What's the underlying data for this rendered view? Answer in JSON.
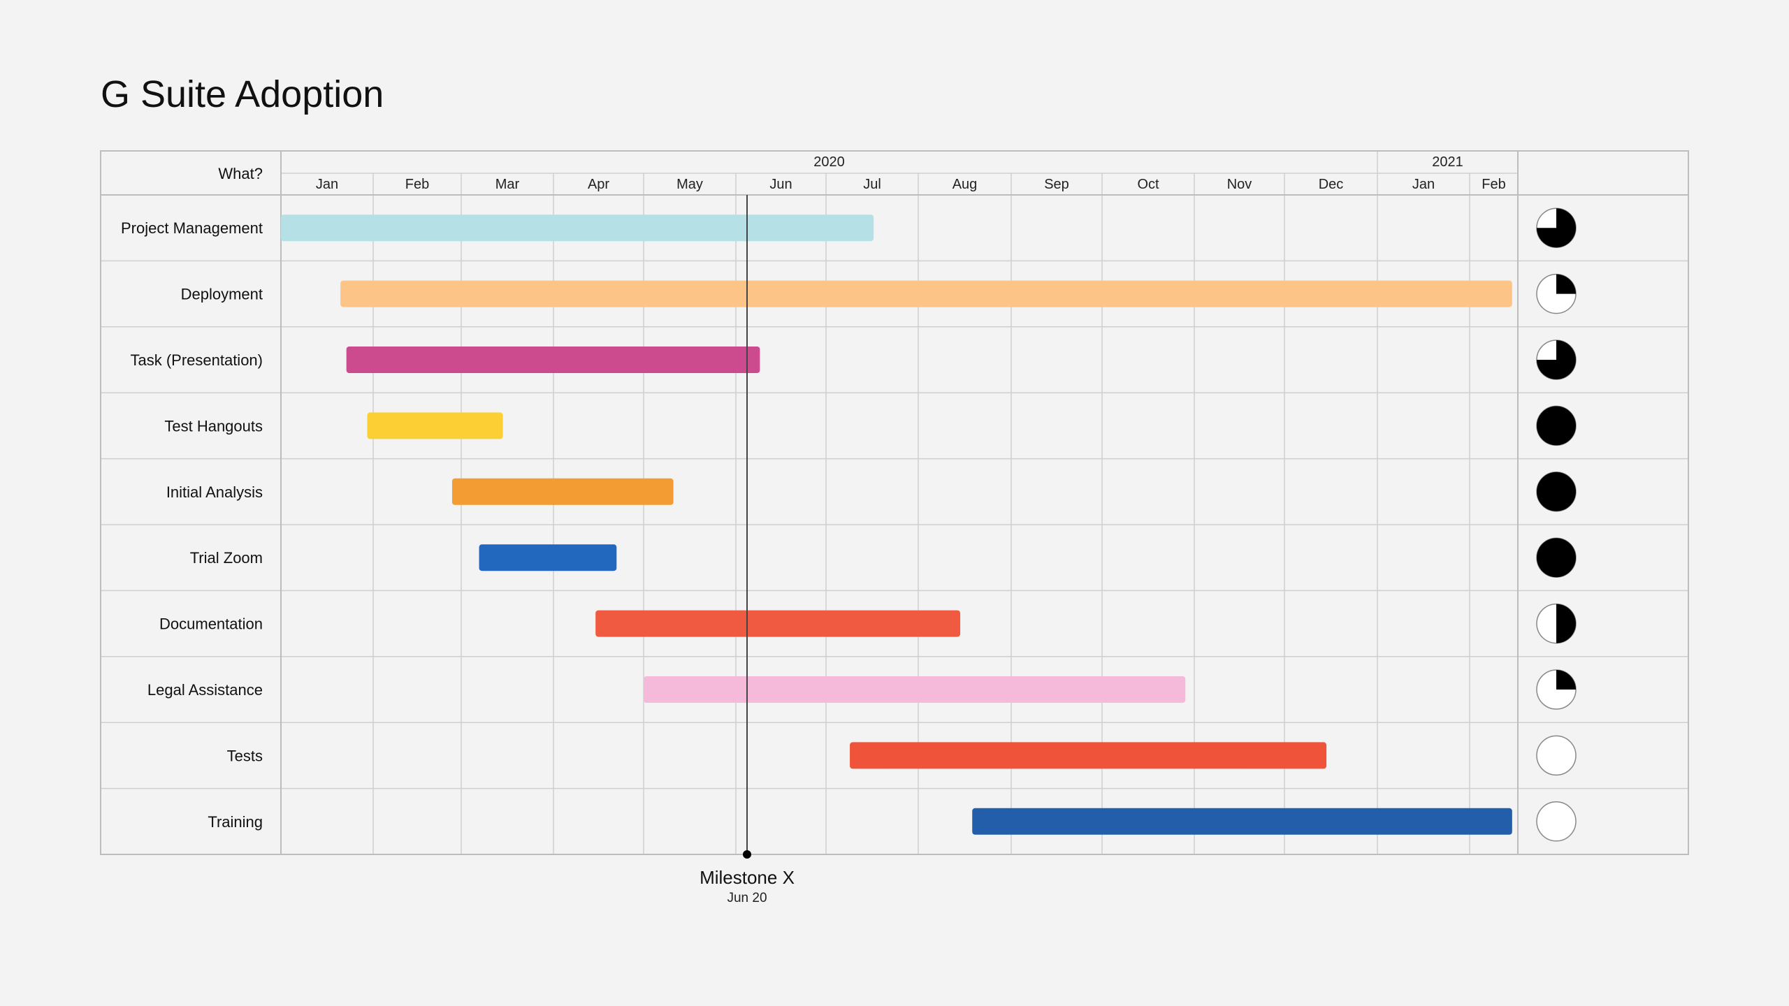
{
  "title": "G Suite Adoption",
  "chart_data": {
    "type": "gantt",
    "title": "G Suite Adoption",
    "label_header": "What?",
    "years": [
      {
        "label": "2020",
        "months": 12
      },
      {
        "label": "2021",
        "months": 2
      }
    ],
    "months": [
      "Jan",
      "Feb",
      "Mar",
      "Apr",
      "May",
      "Jun",
      "Jul",
      "Aug",
      "Sep",
      "Oct",
      "Nov",
      "Dec",
      "Jan",
      "Feb"
    ],
    "grid": true,
    "tasks": [
      {
        "name": "Project Management",
        "start": "2020-01-01",
        "end": "2020-07-17",
        "color": "#b5e0e6",
        "progress": 75
      },
      {
        "name": "Deployment",
        "start": "2020-01-21",
        "end": "2021-02-14",
        "color": "#fcc487",
        "progress": 25
      },
      {
        "name": "Task (Presentation)",
        "start": "2020-01-23",
        "end": "2020-06-09",
        "color": "#cc4a8e",
        "progress": 75
      },
      {
        "name": "Test Hangouts",
        "start": "2020-01-30",
        "end": "2020-03-15",
        "color": "#fcd034",
        "progress": 100
      },
      {
        "name": "Initial Analysis",
        "start": "2020-02-27",
        "end": "2020-05-11",
        "color": "#f39c33",
        "progress": 100
      },
      {
        "name": "Trial Zoom",
        "start": "2020-03-07",
        "end": "2020-04-22",
        "color": "#2268bf",
        "progress": 100
      },
      {
        "name": "Documentation",
        "start": "2020-04-15",
        "end": "2020-08-15",
        "color": "#ef5a40",
        "progress": 50
      },
      {
        "name": "Legal Assistance",
        "start": "2020-05-01",
        "end": "2020-10-29",
        "color": "#f5b9da",
        "progress": 25
      },
      {
        "name": "Tests",
        "start": "2020-07-09",
        "end": "2020-12-15",
        "color": "#ef533a",
        "progress": 0
      },
      {
        "name": "Training",
        "start": "2020-08-19",
        "end": "2021-02-14",
        "color": "#225ea9",
        "progress": 0
      }
    ],
    "milestone": {
      "label": "Milestone X",
      "date_label": "Jun 20"
    }
  }
}
